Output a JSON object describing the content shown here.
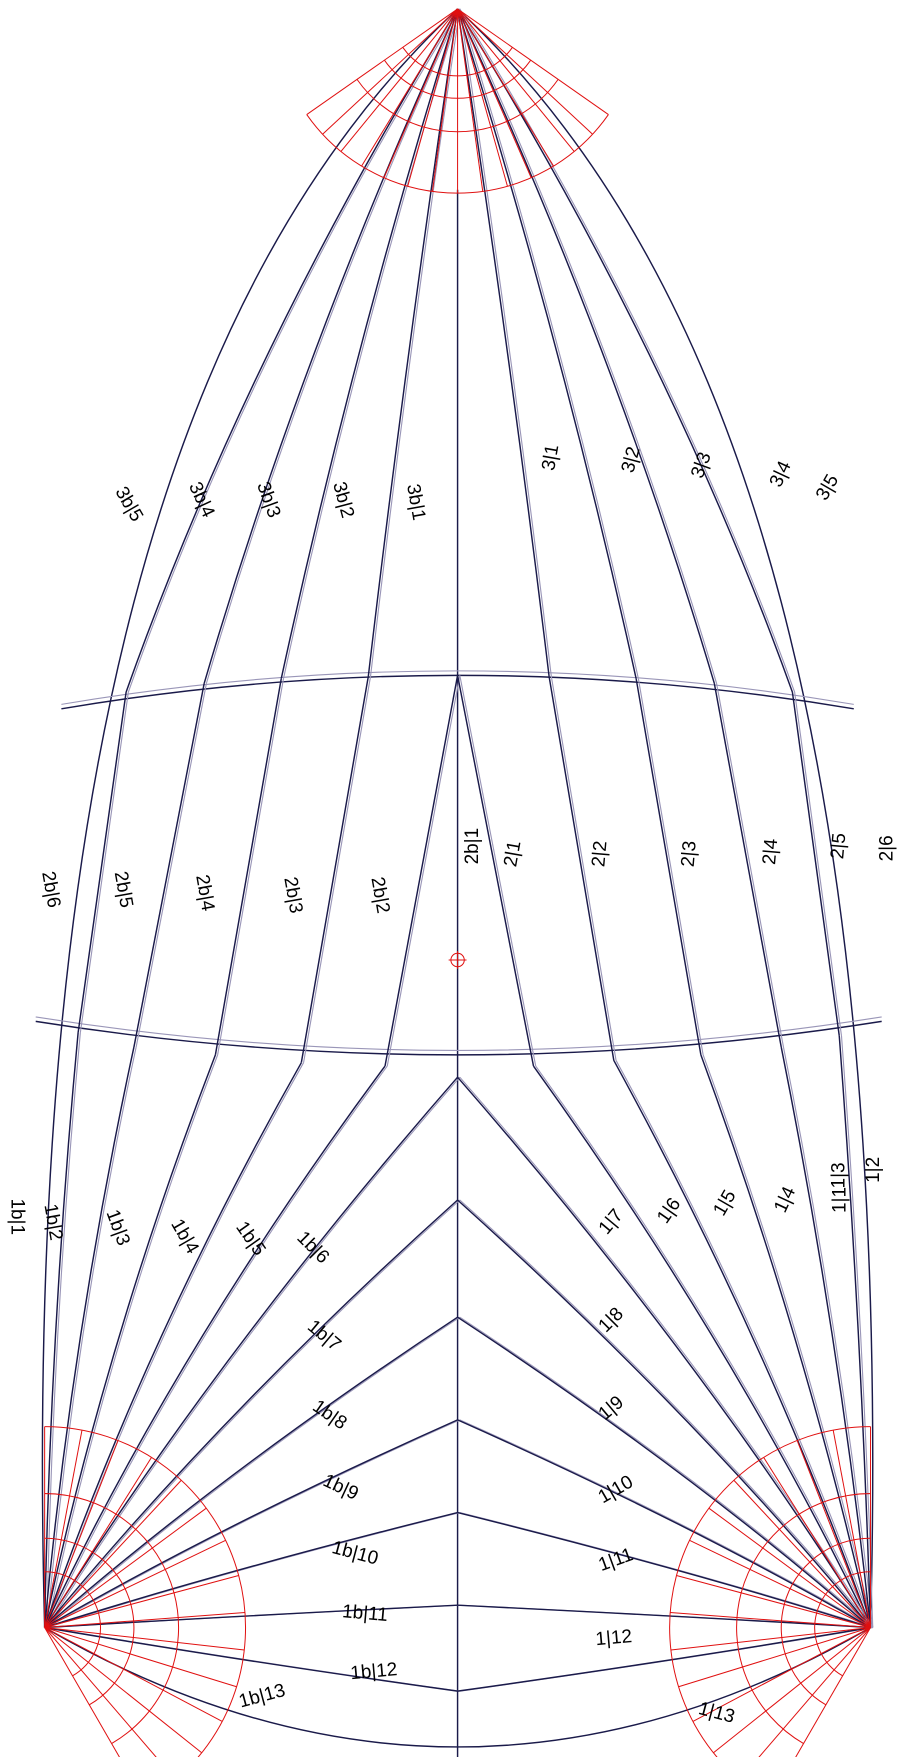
{
  "head_panels": {
    "port": [
      "3b|1",
      "3b|2",
      "3b|3",
      "3b|4",
      "3b|5"
    ],
    "starboard": [
      "3|1",
      "3|2",
      "3|3",
      "3|4",
      "3|5"
    ]
  },
  "mid_panels": {
    "port": [
      "2b|1",
      "2b|2",
      "2b|3",
      "2b|4",
      "2b|5",
      "2b|6"
    ],
    "starboard": [
      "2|1",
      "2|2",
      "2|3",
      "2|4",
      "2|5",
      "2|6"
    ]
  },
  "foot_panels": {
    "port": [
      "1b|1",
      "1b|2",
      "1b|3",
      "1b|4",
      "1b|5",
      "1b|6",
      "1b|7",
      "1b|8",
      "1b|9",
      "1b|10",
      "1b|11",
      "1b|12",
      "1b|13"
    ],
    "starboard": [
      "1|1",
      "1|2",
      "1|3",
      "1|4",
      "1|5",
      "1|6",
      "1|7",
      "1|8",
      "1|9",
      "1|10",
      "1|11",
      "1|12",
      "1|13"
    ]
  }
}
